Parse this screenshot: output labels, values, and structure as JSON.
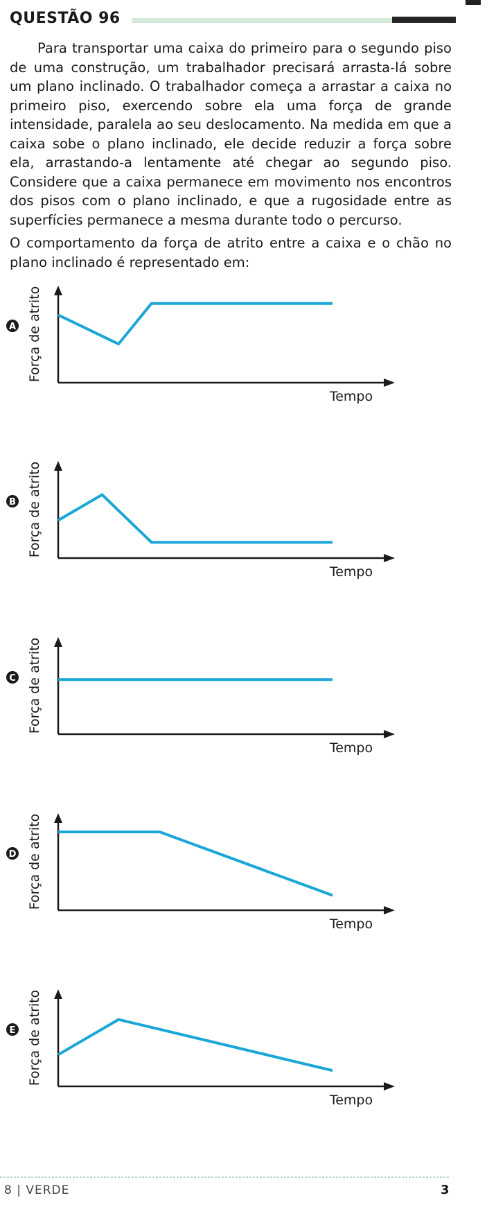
{
  "header": {
    "question_title": "QUESTÃO 96"
  },
  "statement": {
    "paragraph_1": "Para transportar uma caixa do primeiro para o segundo piso de uma construção, um trabalhador precisará arrasta-lá sobre um plano inclinado. O trabalhador começa a arrastar a caixa no primeiro piso, exercendo sobre ela uma força de grande intensidade, paralela ao seu deslocamento. Na medida em que a caixa sobe o plano inclinado, ele decide reduzir a força sobre ela, arrastando-a lentamente até chegar ao segundo piso. Considere que a caixa permanece em movimento nos encontros dos pisos com o plano inclinado, e que a rugosidade entre as superfícies permanece a mesma durante todo o percurso.",
    "paragraph_2": "O comportamento da força de atrito entre a caixa e o chão no plano inclinado é representado em:"
  },
  "colors": {
    "curve": "#1aa6d6",
    "axis": "#1a1a1a",
    "badge": "#1a1a1a"
  },
  "chart_data": [
    {
      "type": "line",
      "option": "A",
      "ylabel": "Força de atrito",
      "xlabel": "Tempo",
      "xlim": [
        0,
        10
      ],
      "ylim": [
        0,
        10
      ],
      "x": [
        0,
        2.2,
        3.4,
        10
      ],
      "y": [
        7.3,
        4.0,
        8.6,
        8.6
      ]
    },
    {
      "type": "line",
      "option": "B",
      "ylabel": "Força de atrito",
      "xlabel": "Tempo",
      "xlim": [
        0,
        10
      ],
      "ylim": [
        0,
        10
      ],
      "x": [
        0,
        1.6,
        3.4,
        10
      ],
      "y": [
        3.9,
        6.8,
        1.4,
        1.4
      ]
    },
    {
      "type": "line",
      "option": "C",
      "ylabel": "Força de atrito",
      "xlabel": "Tempo",
      "xlim": [
        0,
        10
      ],
      "ylim": [
        0,
        10
      ],
      "x": [
        0,
        10
      ],
      "y": [
        5.8,
        5.8
      ]
    },
    {
      "type": "line",
      "option": "D",
      "ylabel": "Força de atrito",
      "xlabel": "Tempo",
      "xlim": [
        0,
        10
      ],
      "ylim": [
        0,
        10
      ],
      "x": [
        0,
        3.7,
        10
      ],
      "y": [
        8.5,
        8.5,
        1.3
      ]
    },
    {
      "type": "line",
      "option": "E",
      "ylabel": "Força de atrito",
      "xlabel": "Tempo",
      "xlim": [
        0,
        10
      ],
      "ylim": [
        0,
        10
      ],
      "x": [
        0,
        2.2,
        10
      ],
      "y": [
        3.2,
        7.2,
        1.4
      ]
    }
  ],
  "footer": {
    "page_label": "8 | VERDE",
    "page_number": "3"
  }
}
